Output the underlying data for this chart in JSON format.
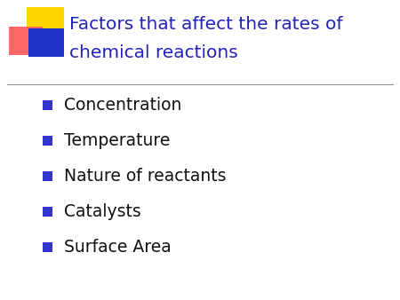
{
  "title_line1": "Factors that affect the rates of",
  "title_line2": "chemical reactions",
  "title_color": "#2222bb",
  "bullet_items": [
    "Concentration",
    "Temperature",
    "Nature of reactants",
    "Catalysts",
    "Surface Area"
  ],
  "bullet_color": "#3333cc",
  "bullet_text_color": "#111111",
  "background_color": "#ffffff",
  "title_fontsize": 14.5,
  "bullet_fontsize": 13.5,
  "separator_color": "#888888",
  "decoration_yellow": "#FFD700",
  "decoration_pink": "#FF6666",
  "decoration_blue": "#2233CC"
}
